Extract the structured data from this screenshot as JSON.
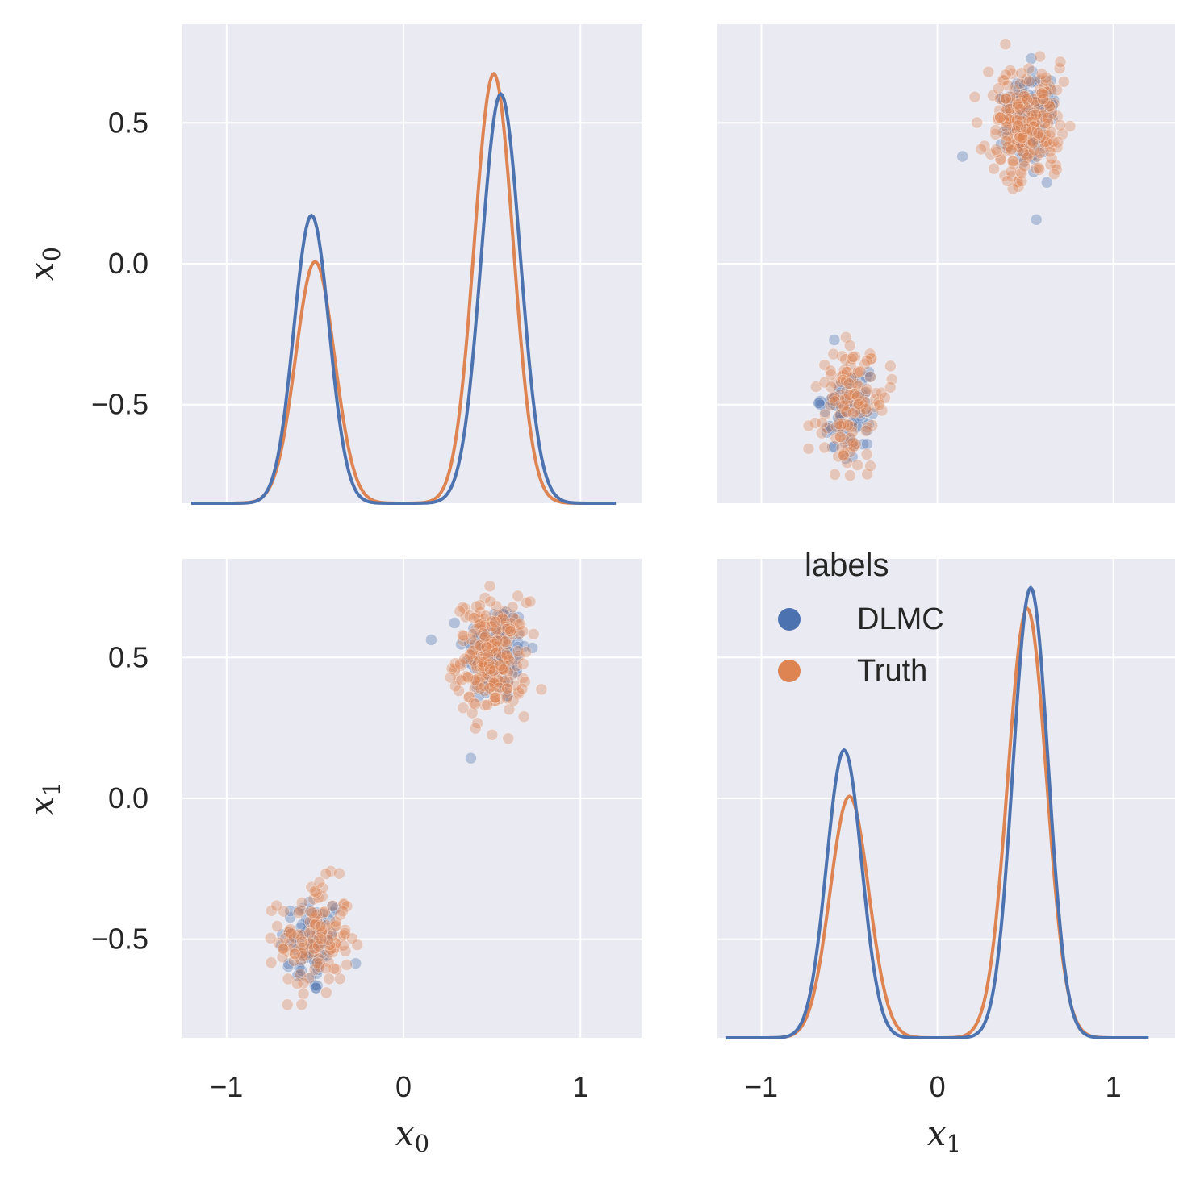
{
  "chart_data": {
    "type": "scatter",
    "kind": "pairplot",
    "variables": [
      "x0",
      "x1"
    ],
    "axis_labels": {
      "x0": {
        "base": "x",
        "sub": "0"
      },
      "x1": {
        "base": "x",
        "sub": "1"
      }
    },
    "x_ticks": [
      -1,
      0,
      1
    ],
    "x_tick_labels": [
      "−1",
      "0",
      "1"
    ],
    "y_ticks": [
      -0.5,
      0.0,
      0.5
    ],
    "y_tick_labels": [
      "−0.5",
      "0.0",
      "0.5"
    ],
    "xlim": [
      -1.25,
      1.35
    ],
    "ylim": [
      -0.85,
      0.85
    ],
    "hue": "labels",
    "legend": {
      "title": "labels",
      "location": "lower-right-panel-top-left",
      "entries": [
        {
          "name": "DLMC",
          "color": "#4c72b0"
        },
        {
          "name": "Truth",
          "color": "#dd8452"
        }
      ]
    },
    "series": [
      {
        "name": "DLMC",
        "color": "#4c72b0",
        "clusters": [
          {
            "center": [
              -0.52,
              -0.52
            ],
            "sd": [
              0.09,
              0.09
            ],
            "n": 70
          },
          {
            "center": [
              0.52,
              0.52
            ],
            "sd": [
              0.09,
              0.09
            ],
            "n": 110
          }
        ],
        "kde": {
          "x0": {
            "modes": [
              {
                "mu": -0.52,
                "sd": 0.1,
                "w": 0.39
              },
              {
                "mu": 0.55,
                "sd": 0.11,
                "w": 0.61
              }
            ]
          },
          "x1": {
            "modes": [
              {
                "mu": -0.53,
                "sd": 0.1,
                "w": 0.39
              },
              {
                "mu": 0.53,
                "sd": 0.1,
                "w": 0.61
              }
            ]
          }
        }
      },
      {
        "name": "Truth",
        "color": "#dd8452",
        "clusters": [
          {
            "center": [
              -0.5,
              -0.5
            ],
            "sd": [
              0.1,
              0.1
            ],
            "n": 130
          },
          {
            "center": [
              0.5,
              0.5
            ],
            "sd": [
              0.1,
              0.1
            ],
            "n": 230
          }
        ],
        "kde": {
          "x0": {
            "modes": [
              {
                "mu": -0.5,
                "sd": 0.11,
                "w": 0.36
              },
              {
                "mu": 0.51,
                "sd": 0.11,
                "w": 0.64
              }
            ]
          },
          "x1": {
            "modes": [
              {
                "mu": -0.5,
                "sd": 0.11,
                "w": 0.36
              },
              {
                "mu": 0.51,
                "sd": 0.11,
                "w": 0.64
              }
            ]
          }
        }
      }
    ]
  }
}
